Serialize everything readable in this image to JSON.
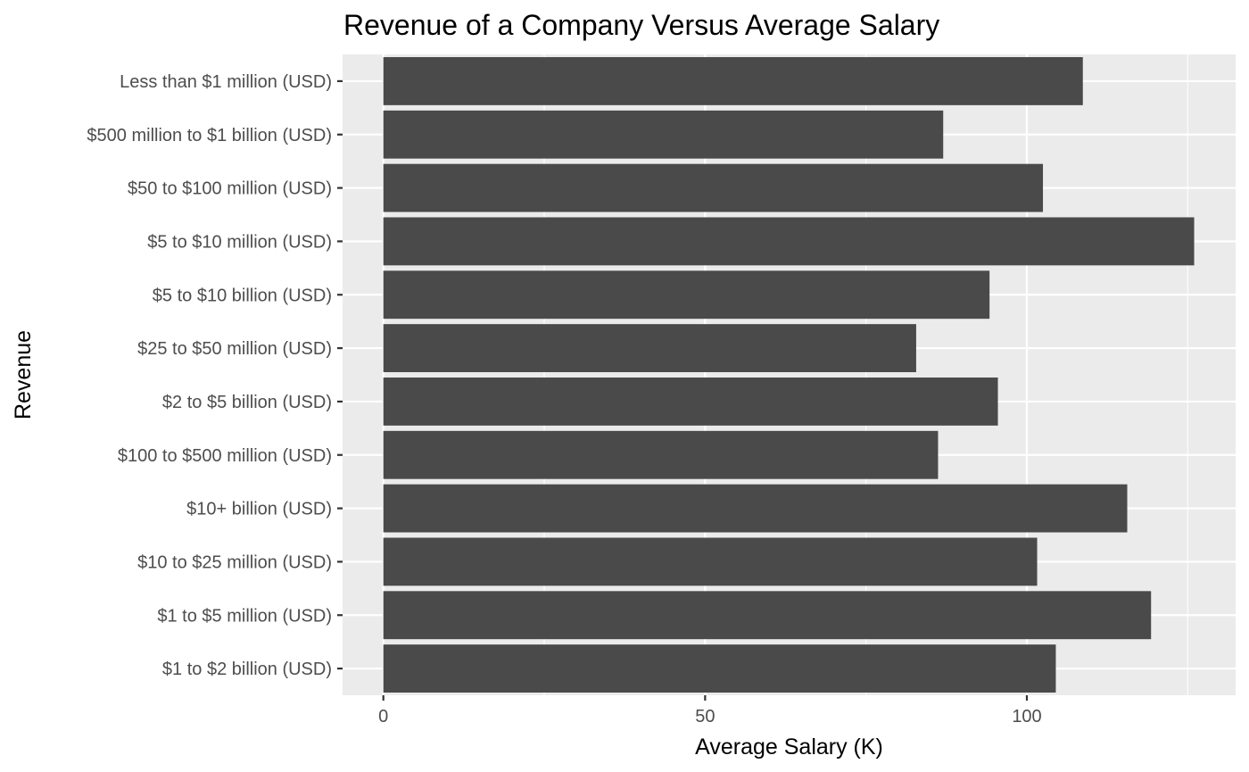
{
  "chart_data": {
    "type": "bar",
    "orientation": "horizontal",
    "title": "Revenue of a Company Versus Average Salary",
    "xlabel": "Average Salary (K)",
    "ylabel": "Revenue",
    "xlim": [
      0,
      132
    ],
    "xticks": [
      0,
      50,
      100
    ],
    "grid": true,
    "bar_color": "#4a4a4a",
    "panel_color": "#ebebeb",
    "categories": [
      "Less than $1 million (USD)",
      "$500 million to $1 billion (USD)",
      "$50 to $100 million (USD)",
      "$5 to $10 million (USD)",
      "$5 to $10 billion (USD)",
      "$25 to $50 million (USD)",
      "$2 to $5 billion (USD)",
      "$100 to $500 million (USD)",
      "$10+ billion (USD)",
      "$10 to $25 million (USD)",
      "$1 to $5 million (USD)",
      "$1 to $2 billion (USD)"
    ],
    "values": [
      108.7,
      87.0,
      102.5,
      126.0,
      94.2,
      82.8,
      95.5,
      86.2,
      115.6,
      101.6,
      119.3,
      104.5
    ]
  }
}
